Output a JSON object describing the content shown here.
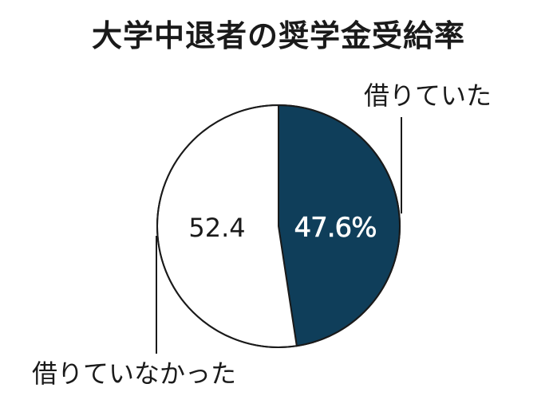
{
  "title": "大学中退者の奨学金受給率",
  "colors": {
    "borrowed": "#0f3e5a",
    "not_borrowed": "#ffffff",
    "outline": "#1a1a1a",
    "text": "#1a1a1a",
    "label_on_dark": "#ffffff"
  },
  "chart_data": {
    "type": "pie",
    "title": "大学中退者の奨学金受給率",
    "slices": [
      {
        "label": "借りていた",
        "value": 47.6,
        "value_label": "47.6%"
      },
      {
        "label": "借りていなかった",
        "value": 52.4,
        "value_label": "52.4"
      }
    ],
    "start_angle": "12 o'clock",
    "direction": "clockwise"
  }
}
